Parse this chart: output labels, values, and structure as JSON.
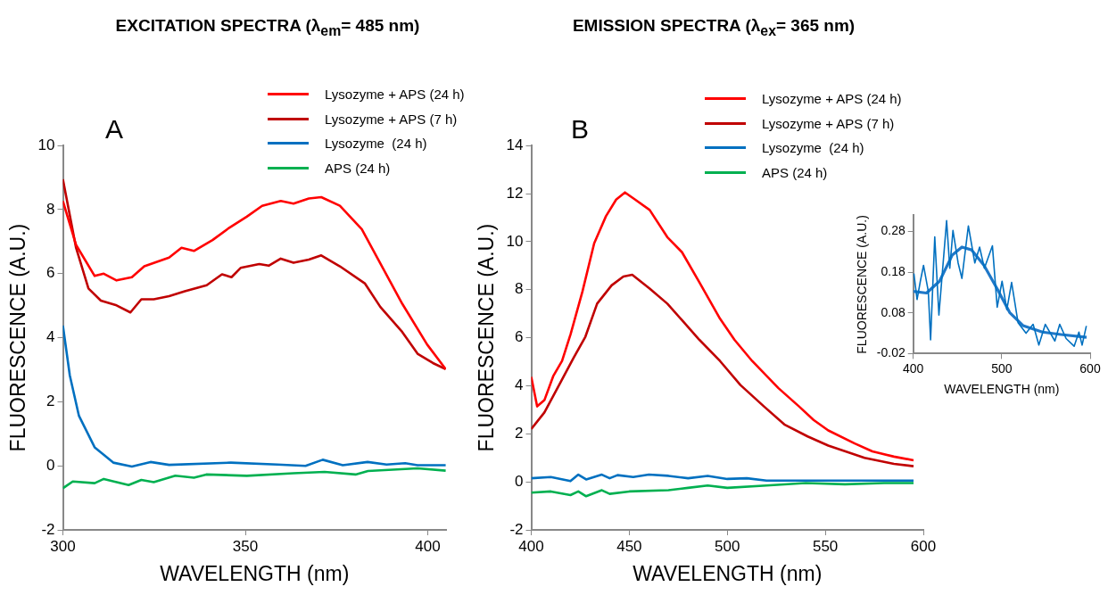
{
  "chart_data": [
    {
      "type": "line",
      "title": "EXCITATION SPECTRA (λ$_{em}$= 485 nm)",
      "xlabel": "WAVELENGTH (nm)",
      "ylabel": "FLUORESCENCE (A.U.)",
      "annotations": [
        "A"
      ],
      "xlim": [
        300,
        405
      ],
      "xticks": [
        300,
        350,
        400
      ],
      "ylim": [
        -2,
        10
      ],
      "yticks": [
        -2,
        0,
        2,
        4,
        6,
        8,
        10
      ],
      "legend": "top right",
      "marker": "none",
      "line_style": "solid",
      "series": [
        {
          "name": "Lysozyme + APS (24 h)",
          "color": "#ff0000",
          "x": [
            300,
            303.6,
            308.7,
            311.2,
            314.7,
            318.9,
            322.3,
            329.1,
            332.5,
            335.9,
            341,
            345.3,
            350.4,
            354.6,
            359.7,
            363.2,
            367.4,
            370.8,
            375.9,
            381.9,
            387,
            393,
            399.8,
            404.9
          ],
          "values": [
            8.27,
            6.9,
            5.93,
            6.0,
            5.79,
            5.89,
            6.23,
            6.5,
            6.81,
            6.71,
            7.05,
            7.41,
            7.78,
            8.12,
            8.27,
            8.19,
            8.35,
            8.39,
            8.12,
            7.39,
            6.32,
            5.06,
            3.79,
            3.02
          ]
        },
        {
          "name": "Lysozyme + APS (7 h)",
          "color": "#c00000",
          "x": [
            300,
            303.6,
            307,
            310.4,
            314.7,
            318.5,
            321.5,
            324.9,
            329.1,
            333.4,
            339.4,
            343.6,
            346.2,
            348.7,
            353.8,
            356.4,
            359.7,
            363.2,
            367.4,
            370.8,
            375.9,
            382.8,
            387,
            393,
            397.2,
            401.4,
            404.9
          ],
          "values": [
            8.95,
            6.81,
            5.54,
            5.16,
            5.01,
            4.79,
            5.2,
            5.2,
            5.3,
            5.45,
            5.64,
            5.98,
            5.89,
            6.18,
            6.3,
            6.25,
            6.47,
            6.34,
            6.44,
            6.57,
            6.23,
            5.69,
            4.96,
            4.18,
            3.5,
            3.21,
            3.02
          ]
        },
        {
          "name": "Lysozyme  (24 h)",
          "color": "#0070c0",
          "x": [
            300,
            301.9,
            304.4,
            308.7,
            313.8,
            318.9,
            324,
            329.1,
            346,
            358.8,
            366.5,
            371.2,
            376.7,
            383.5,
            388.7,
            393.8,
            397.2,
            404.9
          ],
          "values": [
            4.38,
            2.82,
            1.56,
            0.58,
            0.1,
            -0.02,
            0.12,
            0.03,
            0.1,
            0.04,
            0,
            0.19,
            0.02,
            0.12,
            0.04,
            0.08,
            0.02,
            0.02
          ]
        },
        {
          "name": "APS (24 h)",
          "color": "#00b050",
          "x": [
            300,
            302.7,
            308.7,
            311.2,
            318,
            321.5,
            324.9,
            330.8,
            335.9,
            339.3,
            350.4,
            363.2,
            371.7,
            380.2,
            383.6,
            397.2,
            404.9
          ],
          "values": [
            -0.7,
            -0.49,
            -0.54,
            -0.41,
            -0.6,
            -0.44,
            -0.51,
            -0.31,
            -0.37,
            -0.27,
            -0.31,
            -0.23,
            -0.19,
            -0.27,
            -0.16,
            -0.08,
            -0.15
          ]
        }
      ]
    },
    {
      "type": "line",
      "title": "EMISSION SPECTRA (λ$_{ex}$= 365 nm)",
      "xlabel": "WAVELENGTH (nm)",
      "ylabel": "FLUORESCENCE (A.U.)",
      "annotations": [
        "B"
      ],
      "xlim": [
        400,
        600
      ],
      "xticks": [
        400,
        450,
        500,
        550,
        600
      ],
      "ylim": [
        -2,
        14
      ],
      "yticks": [
        -2,
        0,
        2,
        4,
        6,
        8,
        10,
        12,
        14
      ],
      "legend": "top right",
      "marker": "none",
      "line_style": "solid",
      "series": [
        {
          "name": "Lysozyme + APS (24 h)",
          "color": "#ff0000",
          "x": [
            400,
            403,
            406.7,
            411.2,
            415.7,
            420.1,
            426.1,
            432.1,
            438.1,
            443.3,
            447.8,
            453,
            460.4,
            469.4,
            476.9,
            485.8,
            496.3,
            503.7,
            512.7,
            526.1,
            536.6,
            544,
            551.5,
            565,
            574,
            585,
            595
          ],
          "values": [
            4.37,
            3.14,
            3.4,
            4.4,
            5.03,
            6.16,
            7.92,
            9.93,
            11.06,
            11.75,
            12.05,
            11.75,
            11.32,
            10.19,
            9.56,
            8.3,
            6.79,
            5.91,
            5.03,
            3.9,
            3.14,
            2.58,
            2.14,
            1.6,
            1.27,
            1.05,
            0.9
          ]
        },
        {
          "name": "Lysozyme + APS (7 h)",
          "color": "#c00000",
          "x": [
            400,
            406.7,
            414.2,
            421.6,
            427.6,
            433.6,
            441,
            447,
            451.5,
            460.4,
            469.4,
            476.9,
            485.8,
            496.3,
            506.7,
            518.7,
            529.1,
            541,
            551.5,
            570,
            585,
            595
          ],
          "values": [
            2.2,
            2.89,
            4.03,
            5.16,
            6.04,
            7.42,
            8.18,
            8.55,
            8.62,
            8.05,
            7.42,
            6.73,
            5.91,
            5.03,
            4.03,
            3.14,
            2.39,
            1.89,
            1.51,
            1.0,
            0.75,
            0.65
          ]
        },
        {
          "name": "Lysozyme  (24 h)",
          "color": "#0070c0",
          "x": [
            400,
            410,
            420,
            424,
            428,
            436,
            440,
            444,
            452,
            460,
            470,
            480,
            490,
            500,
            510,
            520,
            540,
            560,
            580,
            595
          ],
          "values": [
            0.15,
            0.2,
            0.03,
            0.3,
            0.1,
            0.3,
            0.15,
            0.28,
            0.2,
            0.3,
            0.25,
            0.15,
            0.25,
            0.12,
            0.15,
            0.05,
            0.05,
            0.05,
            0.05,
            0.05
          ]
        },
        {
          "name": "APS (24 h)",
          "color": "#00b050",
          "x": [
            400,
            410,
            420,
            424,
            428,
            436,
            440,
            450,
            470,
            480,
            490,
            500,
            520,
            540,
            560,
            580,
            595
          ],
          "values": [
            -0.45,
            -0.4,
            -0.55,
            -0.4,
            -0.6,
            -0.35,
            -0.5,
            -0.4,
            -0.35,
            -0.25,
            -0.15,
            -0.25,
            -0.15,
            -0.05,
            -0.1,
            -0.05,
            -0.05
          ]
        }
      ]
    },
    {
      "type": "line",
      "xlabel": "WAVELENGTH (nm)",
      "ylabel": "FLUORESCENCE (A.U.)",
      "xlim": [
        400,
        600
      ],
      "xticks": [
        400,
        500,
        600
      ],
      "ylim": [
        -0.02,
        0.32
      ],
      "yticks": [
        -0.02,
        0.08,
        0.18,
        0.28
      ],
      "marker": "none",
      "line_style": "solid",
      "series": [
        {
          "color": "#0070c0",
          "x": [
            400.7,
            404.3,
            408,
            411.6,
            417,
            419.6,
            424.3,
            429,
            433.3,
            437.7,
            441.3,
            444.9,
            450.7,
            455,
            462.3,
            469.6,
            475,
            480.4,
            489.5,
            494.9,
            500.4,
            505.8,
            511.2,
            518.5,
            527.5,
            535.5,
            542,
            549.3,
            560.1,
            565.6,
            572.8,
            581.9,
            587.3,
            590.9,
            595.7
          ],
          "values": [
            0.177,
            0.113,
            0.158,
            0.197,
            0.133,
            0.014,
            0.267,
            0.075,
            0.19,
            0.307,
            0.19,
            0.283,
            0.203,
            0.165,
            0.294,
            0.203,
            0.242,
            0.19,
            0.245,
            0.094,
            0.158,
            0.088,
            0.155,
            0.056,
            0.03,
            0.052,
            0.001,
            0.052,
            0.011,
            0.052,
            0.017,
            -0.002,
            0.033,
            0.001,
            0.048
          ]
        },
        {
          "color": "#1f78c8",
          "x": [
            400,
            415,
            429.7,
            444,
            455,
            466,
            480,
            495,
            509,
            524,
            546,
            567,
            596
          ],
          "values": [
            0.133,
            0.129,
            0.158,
            0.222,
            0.242,
            0.235,
            0.197,
            0.139,
            0.081,
            0.049,
            0.033,
            0.027,
            0.02
          ]
        }
      ]
    }
  ]
}
